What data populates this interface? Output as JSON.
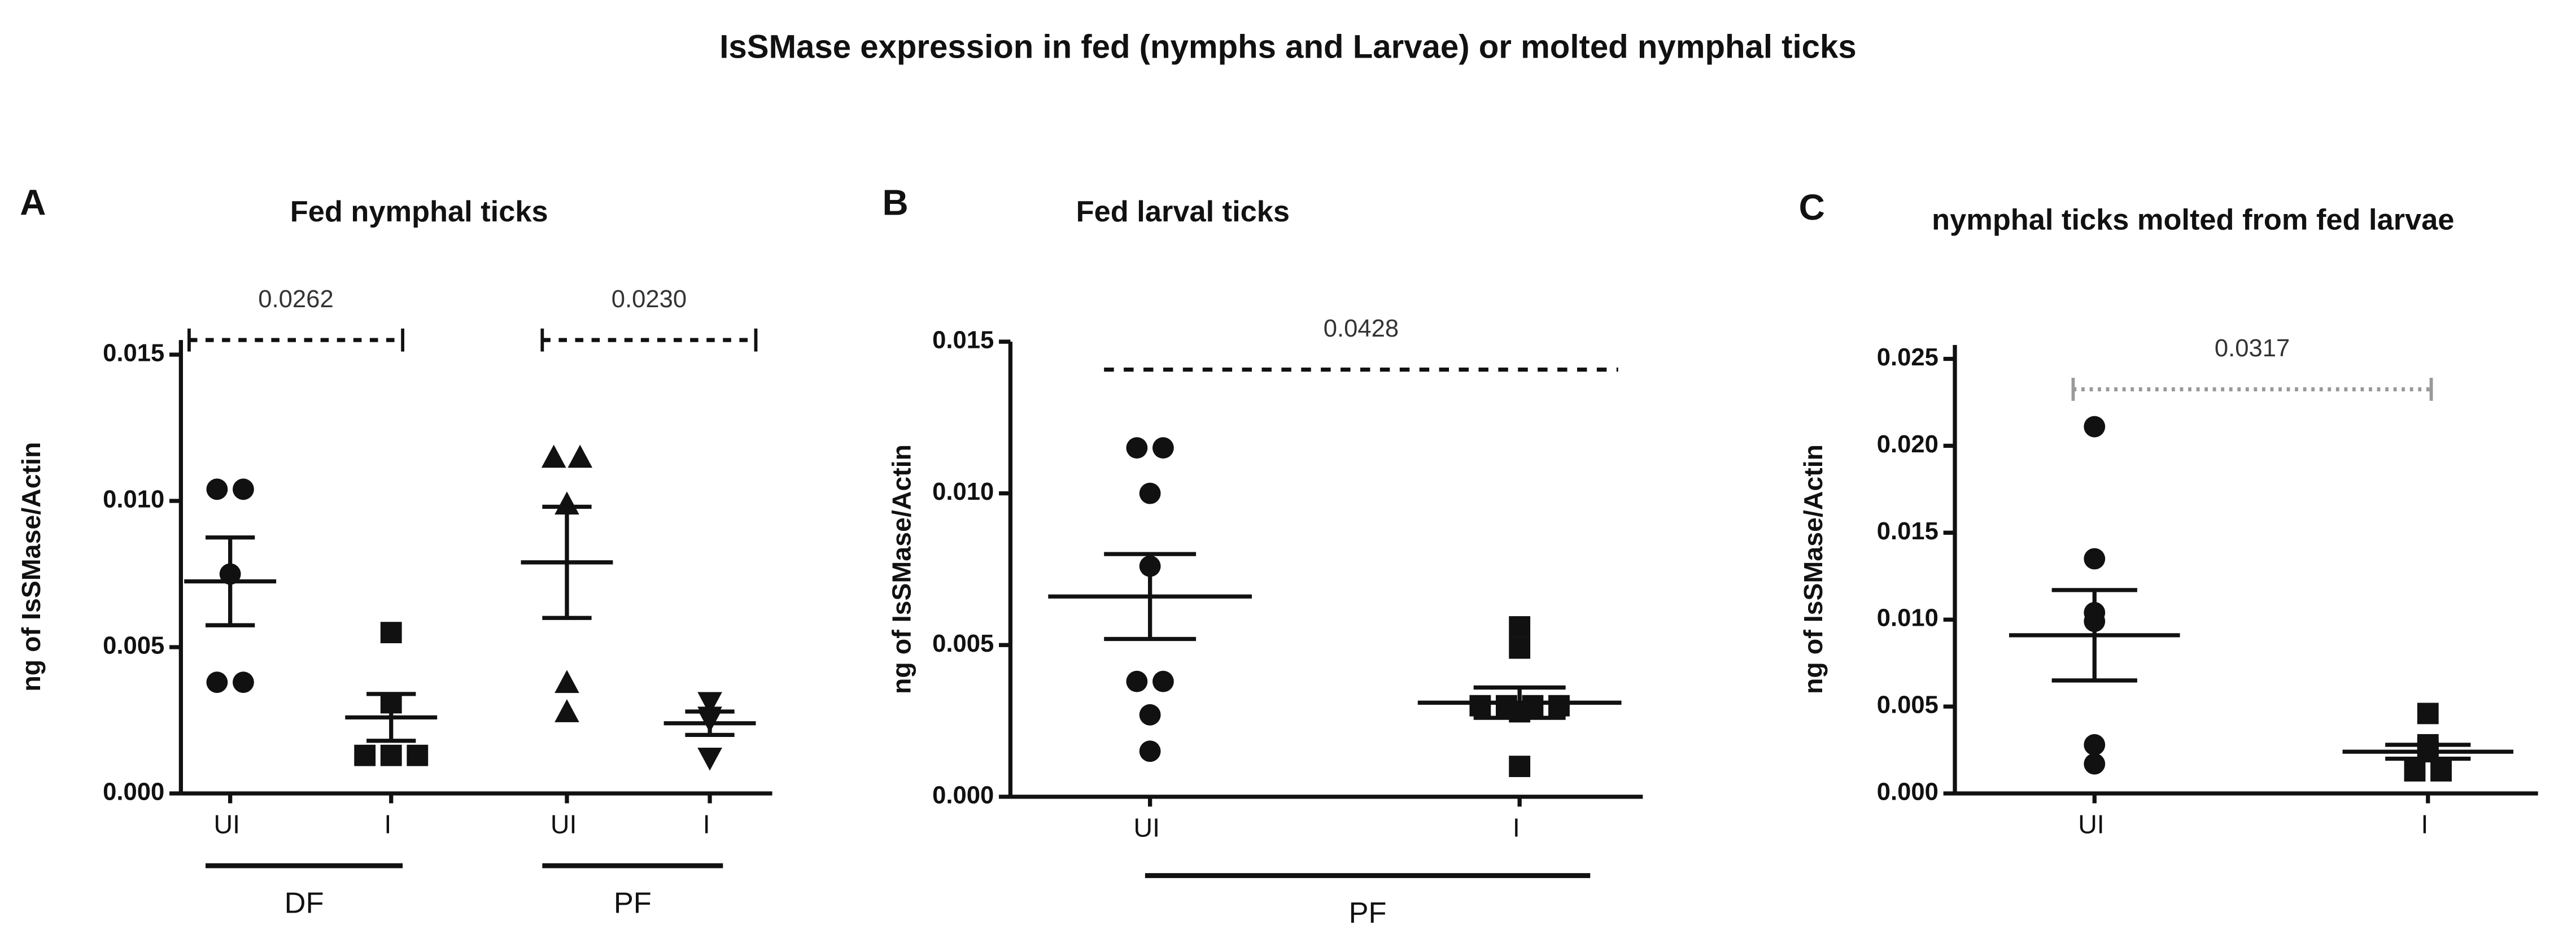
{
  "title": "IsSMase expression in fed (nymphs and Larvae) or molted nymphal ticks",
  "chart_data": [
    {
      "type": "dotplot",
      "letter": "A",
      "title": "Fed nymphal ticks",
      "ylabel": "ng of IsSMase/Actin",
      "ylim": [
        0,
        0.0155
      ],
      "yticks": [
        {
          "value": 0,
          "label": "0.000"
        },
        0.005,
        {
          "value": 0.01,
          "label": "0.010"
        },
        0.015
      ],
      "groups": [
        {
          "category": "UI",
          "marker": "circle",
          "values": [
            0.0104,
            0.0104,
            0.0075,
            0.0038,
            0.0038
          ],
          "mean": 0.00725,
          "sem": 0.0015
        },
        {
          "category": "I",
          "marker": "square",
          "values": [
            0.0055,
            0.0031,
            0.0013,
            0.0013,
            0.0013
          ],
          "mean": 0.0026,
          "sem": 0.0008
        },
        {
          "category": "UI",
          "marker": "triangle",
          "values": [
            0.0115,
            0.0115,
            0.0099,
            0.0038,
            0.0028
          ],
          "mean": 0.0079,
          "sem": 0.0019
        },
        {
          "category": "I",
          "marker": "triangle-down",
          "values": [
            0.0031,
            0.0026,
            0.0025,
            0.0012
          ],
          "mean": 0.0024,
          "sem": 0.0004
        }
      ],
      "group_labels": [
        "DF",
        "PF"
      ],
      "annotations": [
        "0.0262",
        "0.0230"
      ],
      "color": "#111111"
    },
    {
      "type": "dotplot",
      "letter": "B",
      "title": "Fed larval ticks",
      "ylabel": "ng of IsSMase/Actin",
      "ylim": [
        0,
        0.015
      ],
      "yticks": [
        {
          "value": 0,
          "label": "0.000"
        },
        0.005,
        {
          "value": 0.01,
          "label": "0.010"
        },
        0.015
      ],
      "groups": [
        {
          "category": "UI",
          "marker": "circle",
          "values": [
            0.0115,
            0.0115,
            0.01,
            0.0076,
            0.0038,
            0.0038,
            0.0027,
            0.0015
          ],
          "mean": 0.0066,
          "sem": 0.0014
        },
        {
          "category": "I",
          "marker": "square",
          "values": [
            0.0056,
            0.0049,
            0.003,
            0.003,
            0.003,
            0.003,
            0.0028,
            0.001
          ],
          "mean": 0.0031,
          "sem": 0.0005
        }
      ],
      "group_labels": [
        "PF"
      ],
      "annotations": [
        "0.0428"
      ],
      "color": "#111111"
    },
    {
      "type": "dotplot",
      "letter": "C",
      "title": "nymphal ticks molted from fed larvae",
      "ylabel": "ng of IsSMase/Actin",
      "ylim": [
        0,
        0.0258
      ],
      "yticks": [
        {
          "value": 0,
          "label": "0.000"
        },
        0.005,
        {
          "value": 0.01,
          "label": "0.010"
        },
        0.015,
        {
          "value": 0.02,
          "label": "0.020"
        },
        0.025
      ],
      "groups": [
        {
          "category": "UI",
          "marker": "circle",
          "values": [
            0.0211,
            0.0135,
            0.0104,
            0.0099,
            0.0028,
            0.0017
          ],
          "mean": 0.0091,
          "sem": 0.0026
        },
        {
          "category": "I",
          "marker": "square",
          "values": [
            0.0046,
            0.0028,
            0.0026,
            0.0024,
            0.0013,
            0.0013
          ],
          "mean": 0.0024,
          "sem": 0.0004
        }
      ],
      "annotations": [
        "0.0317"
      ],
      "color": "#111111"
    }
  ]
}
